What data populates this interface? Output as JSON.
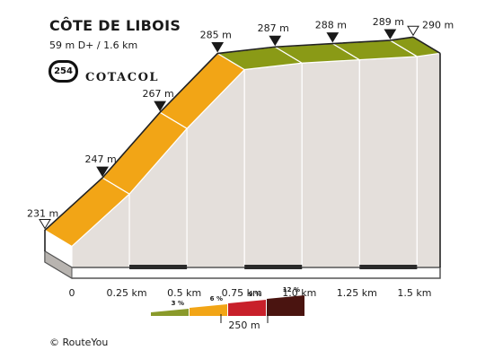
{
  "header": {
    "title": "CÔTE DE LIBOIS",
    "subtitle": "59 m D+ / 1.6 km",
    "badge": "254",
    "brand": "COTACOL"
  },
  "credit": "© RouteYou",
  "colors": {
    "gradient_3": "#8a9a2a",
    "gradient_6": "#f2a516",
    "gradient_9": "#c8202a",
    "gradient_12": "#4a1410",
    "slope_green": "#8a9a16",
    "slope_orange": "#f2a516",
    "face": "#e4dfdb",
    "base": "#555555"
  },
  "chart_data": {
    "type": "area",
    "x_unit": "km",
    "y_unit": "m",
    "points": [
      {
        "x": 0,
        "y": 231,
        "label": "231 m"
      },
      {
        "x": 0.25,
        "y": 247,
        "label": "247 m"
      },
      {
        "x": 0.5,
        "y": 267,
        "label": "267 m"
      },
      {
        "x": 0.75,
        "y": 285,
        "label": "285 m"
      },
      {
        "x": 1.0,
        "y": 287,
        "label": "287 m"
      },
      {
        "x": 1.25,
        "y": 288,
        "label": "288 m"
      },
      {
        "x": 1.5,
        "y": 289,
        "label": "289 m"
      },
      {
        "x": 1.6,
        "y": 290,
        "label": "290 m"
      }
    ],
    "x_ticks": [
      {
        "value": 0,
        "label": "0"
      },
      {
        "value": 0.25,
        "label": "0.25 km"
      },
      {
        "value": 0.5,
        "label": "0.5 km"
      },
      {
        "value": 0.75,
        "label": "0.75 km"
      },
      {
        "value": 1.0,
        "label": "1.0 km"
      },
      {
        "value": 1.25,
        "label": "1.25 km"
      },
      {
        "value": 1.5,
        "label": "1.5 km"
      }
    ],
    "segments": [
      {
        "from": 0,
        "to": 0.75,
        "color": "#f2a516"
      },
      {
        "from": 0.75,
        "to": 1.6,
        "color": "#8a9a16"
      }
    ],
    "ylim": [
      224,
      292
    ],
    "legend": {
      "entries": [
        {
          "label": "3 %",
          "color": "#8a9a2a"
        },
        {
          "label": "6 %",
          "color": "#f2a516"
        },
        {
          "label": "9 %",
          "color": "#c8202a"
        },
        {
          "label": "12 %",
          "color": "#4a1410"
        }
      ],
      "scale_label": "250 m"
    }
  }
}
